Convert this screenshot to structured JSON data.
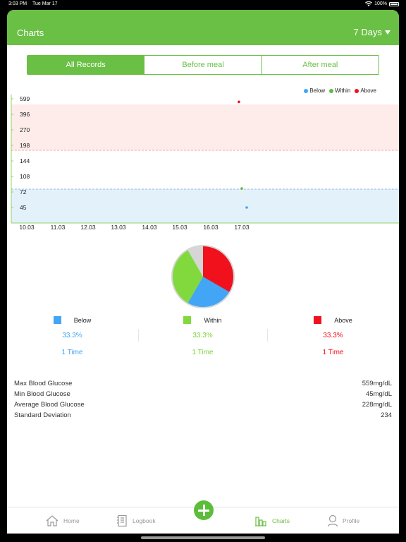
{
  "status": {
    "time": "3:03 PM",
    "date": "Tue Mar 17",
    "battery": "100%"
  },
  "header": {
    "title": "Charts",
    "range": "7 Days"
  },
  "filters": {
    "all": "All Records",
    "before": "Before meal",
    "after": "After meal"
  },
  "legend": {
    "below": "Below",
    "within": "Within",
    "above": "Above"
  },
  "colors": {
    "accent": "#6abf45",
    "below": "#42a5f5",
    "within": "#82d93e",
    "above": "#f0111d"
  },
  "chart_data": {
    "type": "scatter",
    "y_ticks": [
      "599",
      "396",
      "270",
      "198",
      "144",
      "108",
      "72",
      "45"
    ],
    "x_ticks": [
      "10.03",
      "11.03",
      "12.03",
      "13.03",
      "14.03",
      "15.03",
      "16.03",
      "17.03"
    ],
    "bands": {
      "high_threshold": 198,
      "low_threshold": 72
    },
    "points": [
      {
        "x": "17.03",
        "y": 559,
        "status": "above"
      },
      {
        "x": "17.03",
        "y": 80,
        "status": "within"
      },
      {
        "x": "17.03",
        "y": 45,
        "status": "below"
      }
    ],
    "legend_position": "top-right"
  },
  "pie_data": {
    "type": "pie",
    "slices": [
      {
        "name": "Below",
        "value": 33.3
      },
      {
        "name": "Within",
        "value": 33.3
      },
      {
        "name": "Above",
        "value": 33.3
      }
    ]
  },
  "stats": {
    "below": {
      "label": "Below",
      "pct": "33.3%",
      "times": "1 Time"
    },
    "within": {
      "label": "Within",
      "pct": "33.3%",
      "times": "1 Time"
    },
    "above": {
      "label": "Above",
      "pct": "33.3%",
      "times": "1 Time"
    }
  },
  "summary": [
    {
      "label": "Max Blood Glucose",
      "value": "559mg/dL"
    },
    {
      "label": "Min Blood Glucose",
      "value": "45mg/dL"
    },
    {
      "label": "Average Blood Glucose",
      "value": "228mg/dL"
    },
    {
      "label": "Standard Deviation",
      "value": "234"
    }
  ],
  "tabs": {
    "home": "Home",
    "logbook": "Logbook",
    "charts": "Charts",
    "profile": "Profile"
  },
  "icons": {
    "add": "plus-icon",
    "home": "home-icon",
    "logbook": "logbook-icon",
    "charts": "charts-icon",
    "profile": "profile-icon"
  }
}
